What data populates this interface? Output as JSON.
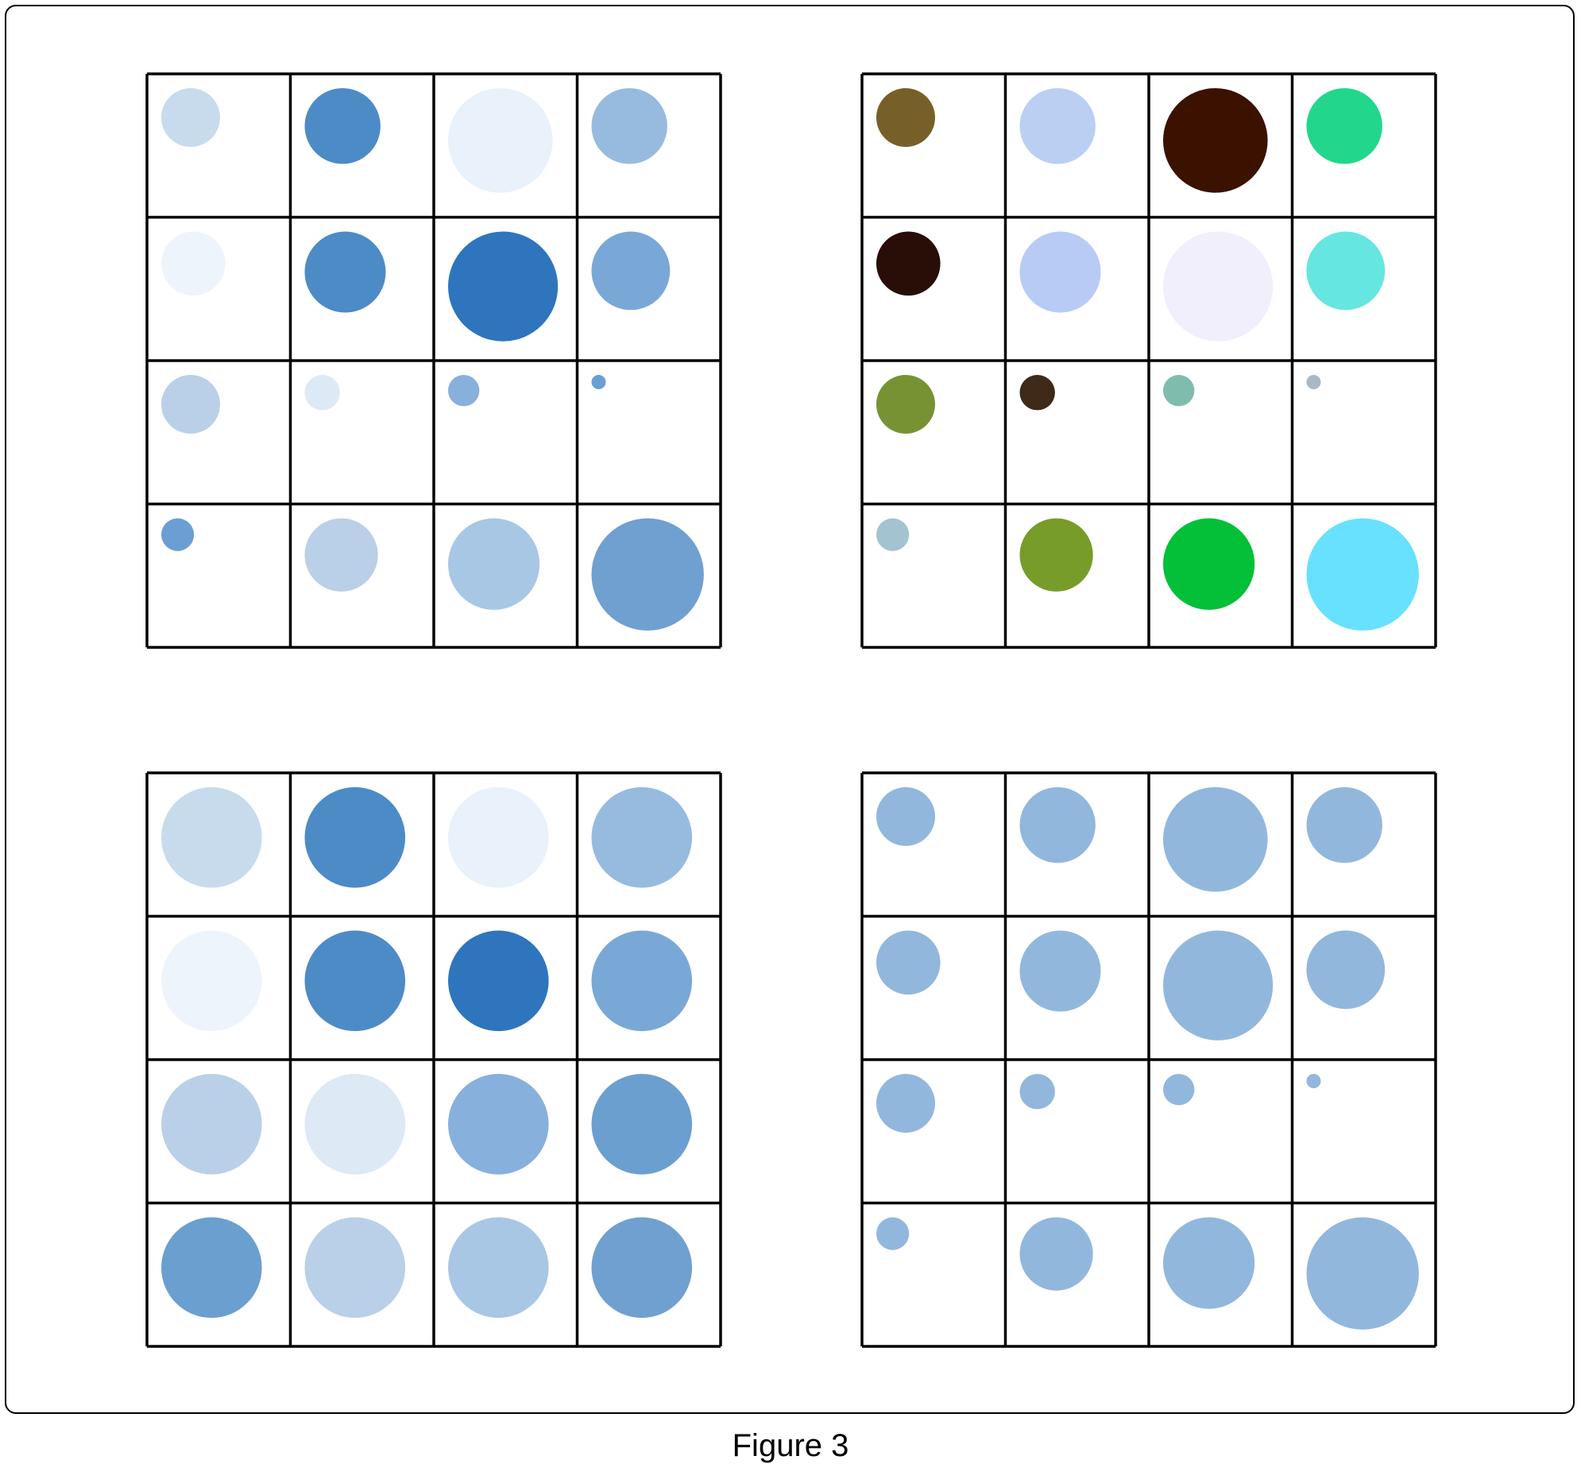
{
  "caption": "Figure 3",
  "panels": [
    {
      "name": "top-left",
      "cells": [
        [
          {
            "size": 0.45,
            "color": "#c8dbed"
          },
          {
            "size": 0.58,
            "color": "#4d8bc7"
          },
          {
            "size": 0.8,
            "color": "#e9f1fa"
          },
          {
            "size": 0.58,
            "color": "#97bbdf"
          }
        ],
        [
          {
            "size": 0.49,
            "color": "#eef4fb"
          },
          {
            "size": 0.62,
            "color": "#4d8bc7"
          },
          {
            "size": 0.84,
            "color": "#2e75bd"
          },
          {
            "size": 0.6,
            "color": "#7aa8d6"
          }
        ],
        [
          {
            "size": 0.45,
            "color": "#b9d0e8"
          },
          {
            "size": 0.27,
            "color": "#dde9f5"
          },
          {
            "size": 0.24,
            "color": "#87b0dc"
          },
          {
            "size": 0.11,
            "color": "#6b9fd4"
          }
        ],
        [
          {
            "size": 0.25,
            "color": "#6b9fd4"
          },
          {
            "size": 0.56,
            "color": "#b9d0e8"
          },
          {
            "size": 0.7,
            "color": "#a8c7e5"
          },
          {
            "size": 0.86,
            "color": "#6fa0d0"
          }
        ]
      ]
    },
    {
      "name": "top-right",
      "cells": [
        [
          {
            "size": 0.45,
            "color": "#776028"
          },
          {
            "size": 0.58,
            "color": "#bacff2"
          },
          {
            "size": 0.8,
            "color": "#3b1100"
          },
          {
            "size": 0.58,
            "color": "#22d78b"
          }
        ],
        [
          {
            "size": 0.49,
            "color": "#280e07"
          },
          {
            "size": 0.62,
            "color": "#b8cbf5"
          },
          {
            "size": 0.84,
            "color": "#f1effc"
          },
          {
            "size": 0.6,
            "color": "#66e6e0"
          }
        ],
        [
          {
            "size": 0.45,
            "color": "#779233"
          },
          {
            "size": 0.27,
            "color": "#3f2918"
          },
          {
            "size": 0.24,
            "color": "#80bcae"
          },
          {
            "size": 0.11,
            "color": "#a9b9c3"
          }
        ],
        [
          {
            "size": 0.25,
            "color": "#a3c3d0"
          },
          {
            "size": 0.56,
            "color": "#779c2a"
          },
          {
            "size": 0.7,
            "color": "#03c038"
          },
          {
            "size": 0.86,
            "color": "#67e1fd"
          }
        ]
      ]
    },
    {
      "name": "bottom-left",
      "cells": [
        [
          {
            "size": 0.77,
            "color": "#c8dbed"
          },
          {
            "size": 0.77,
            "color": "#4d8bc7"
          },
          {
            "size": 0.77,
            "color": "#e9f1fa"
          },
          {
            "size": 0.77,
            "color": "#97bbdf"
          }
        ],
        [
          {
            "size": 0.77,
            "color": "#eef4fb"
          },
          {
            "size": 0.77,
            "color": "#4d8bc7"
          },
          {
            "size": 0.77,
            "color": "#2e75bd"
          },
          {
            "size": 0.77,
            "color": "#7aa8d6"
          }
        ],
        [
          {
            "size": 0.77,
            "color": "#b9d0e8"
          },
          {
            "size": 0.77,
            "color": "#dde9f5"
          },
          {
            "size": 0.77,
            "color": "#87b0dc"
          },
          {
            "size": 0.77,
            "color": "#6b9fd0"
          }
        ],
        [
          {
            "size": 0.77,
            "color": "#6b9fd0"
          },
          {
            "size": 0.77,
            "color": "#b9d0e8"
          },
          {
            "size": 0.77,
            "color": "#a8c7e5"
          },
          {
            "size": 0.77,
            "color": "#6fa0d0"
          }
        ]
      ]
    },
    {
      "name": "bottom-right",
      "cells": [
        [
          {
            "size": 0.45,
            "color": "#92b7dd"
          },
          {
            "size": 0.58,
            "color": "#92b7dd"
          },
          {
            "size": 0.8,
            "color": "#92b7dd"
          },
          {
            "size": 0.58,
            "color": "#92b7dd"
          }
        ],
        [
          {
            "size": 0.49,
            "color": "#92b7dd"
          },
          {
            "size": 0.62,
            "color": "#92b7dd"
          },
          {
            "size": 0.84,
            "color": "#92b7dd"
          },
          {
            "size": 0.6,
            "color": "#92b7dd"
          }
        ],
        [
          {
            "size": 0.45,
            "color": "#92b7dd"
          },
          {
            "size": 0.27,
            "color": "#92b7dd"
          },
          {
            "size": 0.24,
            "color": "#92b7dd"
          },
          {
            "size": 0.11,
            "color": "#92b7dd"
          }
        ],
        [
          {
            "size": 0.25,
            "color": "#92b7dd"
          },
          {
            "size": 0.56,
            "color": "#92b7dd"
          },
          {
            "size": 0.7,
            "color": "#92b7dd"
          },
          {
            "size": 0.86,
            "color": "#92b7dd"
          }
        ]
      ]
    }
  ]
}
